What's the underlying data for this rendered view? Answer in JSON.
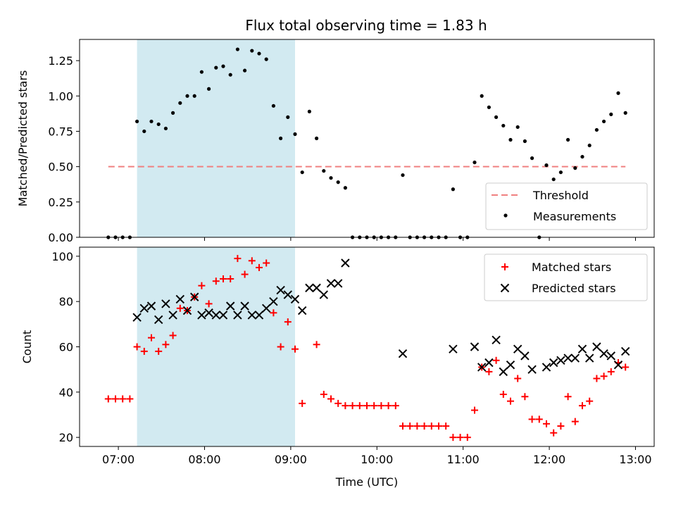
{
  "chart_data": {
    "title": "Flux total observing time = 1.83 h",
    "shaded_region": {
      "x": [
        "07:13",
        "09:03"
      ],
      "color": "#add8e6"
    },
    "x_axis": {
      "label": "Time (UTC)",
      "xlim": [
        "06:33",
        "13:13"
      ],
      "ticks": [
        "07:00",
        "08:00",
        "09:00",
        "10:00",
        "11:00",
        "12:00",
        "13:00"
      ]
    },
    "panels": [
      {
        "type": "scatter",
        "ylabel": "Matched/Predicted stars",
        "ylim": [
          0,
          1.4
        ],
        "yticks": [
          "0.00",
          "0.25",
          "0.50",
          "0.75",
          "1.00",
          "1.25"
        ],
        "legend_position": "lower-right",
        "threshold": {
          "name": "Threshold",
          "value": 0.5,
          "x": [
            "06:53",
            "12:53"
          ],
          "color": "#f08080"
        },
        "series": [
          {
            "name": "Measurements",
            "color": "#000000",
            "marker": "dot",
            "points": [
              [
                "06:53",
                0
              ],
              [
                "06:58",
                0
              ],
              [
                "07:03",
                0
              ],
              [
                "07:08",
                0
              ],
              [
                "07:13",
                0.82
              ],
              [
                "07:18",
                0.75
              ],
              [
                "07:23",
                0.82
              ],
              [
                "07:28",
                0.8
              ],
              [
                "07:33",
                0.77
              ],
              [
                "07:38",
                0.88
              ],
              [
                "07:43",
                0.95
              ],
              [
                "07:48",
                1.0
              ],
              [
                "07:53",
                1.0
              ],
              [
                "07:58",
                1.17
              ],
              [
                "08:03",
                1.05
              ],
              [
                "08:08",
                1.2
              ],
              [
                "08:13",
                1.21
              ],
              [
                "08:18",
                1.15
              ],
              [
                "08:23",
                1.33
              ],
              [
                "08:28",
                1.18
              ],
              [
                "08:33",
                1.32
              ],
              [
                "08:38",
                1.3
              ],
              [
                "08:43",
                1.26
              ],
              [
                "08:48",
                0.93
              ],
              [
                "08:53",
                0.7
              ],
              [
                "08:58",
                0.85
              ],
              [
                "09:03",
                0.73
              ],
              [
                "09:08",
                0.46
              ],
              [
                "09:13",
                0.89
              ],
              [
                "09:18",
                0.7
              ],
              [
                "09:23",
                0.47
              ],
              [
                "09:28",
                0.42
              ],
              [
                "09:33",
                0.39
              ],
              [
                "09:38",
                0.35
              ],
              [
                "09:43",
                0
              ],
              [
                "09:48",
                0
              ],
              [
                "09:53",
                0
              ],
              [
                "09:58",
                0
              ],
              [
                "10:03",
                0
              ],
              [
                "10:08",
                0
              ],
              [
                "10:13",
                0
              ],
              [
                "10:18",
                0.44
              ],
              [
                "10:23",
                0
              ],
              [
                "10:28",
                0
              ],
              [
                "10:33",
                0
              ],
              [
                "10:38",
                0
              ],
              [
                "10:43",
                0
              ],
              [
                "10:48",
                0
              ],
              [
                "10:53",
                0.34
              ],
              [
                "10:58",
                0
              ],
              [
                "11:03",
                0
              ],
              [
                "11:08",
                0.53
              ],
              [
                "11:13",
                1.0
              ],
              [
                "11:18",
                0.92
              ],
              [
                "11:23",
                0.85
              ],
              [
                "11:28",
                0.79
              ],
              [
                "11:33",
                0.69
              ],
              [
                "11:38",
                0.78
              ],
              [
                "11:43",
                0.68
              ],
              [
                "11:48",
                0.56
              ],
              [
                "11:53",
                0
              ],
              [
                "11:58",
                0.51
              ],
              [
                "12:03",
                0.41
              ],
              [
                "12:08",
                0.46
              ],
              [
                "12:13",
                0.69
              ],
              [
                "12:18",
                0.49
              ],
              [
                "12:23",
                0.57
              ],
              [
                "12:28",
                0.65
              ],
              [
                "12:33",
                0.76
              ],
              [
                "12:38",
                0.82
              ],
              [
                "12:43",
                0.87
              ],
              [
                "12:48",
                1.02
              ],
              [
                "12:53",
                0.88
              ]
            ]
          }
        ]
      },
      {
        "type": "scatter",
        "ylabel": "Count",
        "ylim": [
          16,
          104
        ],
        "yticks": [
          "20",
          "40",
          "60",
          "80",
          "100"
        ],
        "legend_position": "upper-right",
        "series": [
          {
            "name": "Matched stars",
            "color": "#ff0000",
            "marker": "plus",
            "points": [
              [
                "06:53",
                37
              ],
              [
                "06:58",
                37
              ],
              [
                "07:03",
                37
              ],
              [
                "07:08",
                37
              ],
              [
                "07:13",
                60
              ],
              [
                "07:18",
                58
              ],
              [
                "07:23",
                64
              ],
              [
                "07:28",
                58
              ],
              [
                "07:33",
                61
              ],
              [
                "07:38",
                65
              ],
              [
                "07:43",
                77
              ],
              [
                "07:48",
                76
              ],
              [
                "07:53",
                82
              ],
              [
                "07:58",
                87
              ],
              [
                "08:03",
                79
              ],
              [
                "08:08",
                89
              ],
              [
                "08:13",
                90
              ],
              [
                "08:18",
                90
              ],
              [
                "08:23",
                99
              ],
              [
                "08:28",
                92
              ],
              [
                "08:33",
                98
              ],
              [
                "08:38",
                95
              ],
              [
                "08:43",
                97
              ],
              [
                "08:48",
                75
              ],
              [
                "08:53",
                60
              ],
              [
                "08:58",
                71
              ],
              [
                "09:03",
                59
              ],
              [
                "09:08",
                35
              ],
              [
                "09:18",
                61
              ],
              [
                "09:23",
                39
              ],
              [
                "09:28",
                37
              ],
              [
                "09:33",
                35
              ],
              [
                "09:38",
                34
              ],
              [
                "09:43",
                34
              ],
              [
                "09:48",
                34
              ],
              [
                "09:53",
                34
              ],
              [
                "09:58",
                34
              ],
              [
                "10:03",
                34
              ],
              [
                "10:08",
                34
              ],
              [
                "10:13",
                34
              ],
              [
                "10:18",
                25
              ],
              [
                "10:23",
                25
              ],
              [
                "10:28",
                25
              ],
              [
                "10:33",
                25
              ],
              [
                "10:38",
                25
              ],
              [
                "10:43",
                25
              ],
              [
                "10:48",
                25
              ],
              [
                "10:53",
                20
              ],
              [
                "10:58",
                20
              ],
              [
                "11:03",
                20
              ],
              [
                "11:08",
                32
              ],
              [
                "11:13",
                51
              ],
              [
                "11:18",
                49
              ],
              [
                "11:23",
                54
              ],
              [
                "11:28",
                39
              ],
              [
                "11:33",
                36
              ],
              [
                "11:38",
                46
              ],
              [
                "11:43",
                38
              ],
              [
                "11:48",
                28
              ],
              [
                "11:53",
                28
              ],
              [
                "11:58",
                26
              ],
              [
                "12:03",
                22
              ],
              [
                "12:08",
                25
              ],
              [
                "12:13",
                38
              ],
              [
                "12:18",
                27
              ],
              [
                "12:23",
                34
              ],
              [
                "12:28",
                36
              ],
              [
                "12:33",
                46
              ],
              [
                "12:38",
                47
              ],
              [
                "12:43",
                49
              ],
              [
                "12:48",
                53
              ],
              [
                "12:53",
                51
              ]
            ]
          },
          {
            "name": "Predicted stars",
            "color": "#000000",
            "marker": "x",
            "points": [
              [
                "07:13",
                73
              ],
              [
                "07:18",
                77
              ],
              [
                "07:23",
                78
              ],
              [
                "07:28",
                72
              ],
              [
                "07:33",
                79
              ],
              [
                "07:38",
                74
              ],
              [
                "07:43",
                81
              ],
              [
                "07:48",
                76
              ],
              [
                "07:53",
                82
              ],
              [
                "07:58",
                74
              ],
              [
                "08:03",
                75
              ],
              [
                "08:08",
                74
              ],
              [
                "08:13",
                74
              ],
              [
                "08:18",
                78
              ],
              [
                "08:23",
                74
              ],
              [
                "08:28",
                78
              ],
              [
                "08:33",
                74
              ],
              [
                "08:38",
                74
              ],
              [
                "08:43",
                77
              ],
              [
                "08:48",
                80
              ],
              [
                "08:53",
                85
              ],
              [
                "08:58",
                83
              ],
              [
                "09:03",
                81
              ],
              [
                "09:08",
                76
              ],
              [
                "09:13",
                86
              ],
              [
                "09:18",
                86
              ],
              [
                "09:23",
                83
              ],
              [
                "09:28",
                88
              ],
              [
                "09:33",
                88
              ],
              [
                "09:38",
                97
              ],
              [
                "10:18",
                57
              ],
              [
                "10:53",
                59
              ],
              [
                "11:08",
                60
              ],
              [
                "11:13",
                51
              ],
              [
                "11:18",
                53
              ],
              [
                "11:23",
                63
              ],
              [
                "11:28",
                49
              ],
              [
                "11:33",
                52
              ],
              [
                "11:38",
                59
              ],
              [
                "11:43",
                56
              ],
              [
                "11:48",
                50
              ],
              [
                "11:58",
                51
              ],
              [
                "12:03",
                53
              ],
              [
                "12:08",
                54
              ],
              [
                "12:13",
                55
              ],
              [
                "12:18",
                55
              ],
              [
                "12:23",
                59
              ],
              [
                "12:28",
                55
              ],
              [
                "12:33",
                60
              ],
              [
                "12:38",
                57
              ],
              [
                "12:43",
                56
              ],
              [
                "12:48",
                52
              ],
              [
                "12:53",
                58
              ]
            ]
          }
        ]
      }
    ]
  }
}
